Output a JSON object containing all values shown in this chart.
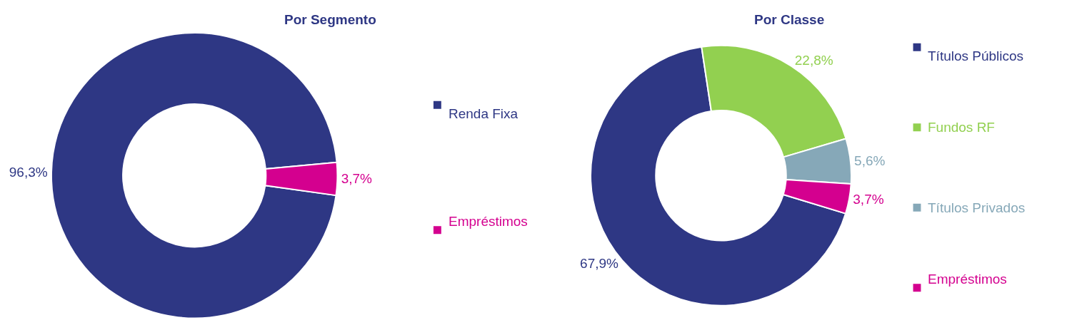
{
  "chart_data": [
    {
      "type": "donut",
      "title": "Por Segmento",
      "categories": [
        "Renda Fixa",
        "Empréstimos"
      ],
      "values": [
        96.3,
        3.7
      ],
      "colors": [
        "#2e3784",
        "#d4008f"
      ],
      "value_labels": [
        "96,3%",
        "3,7%"
      ],
      "legend": "right"
    },
    {
      "type": "donut",
      "title": "Por Classe",
      "categories": [
        "Títulos Públicos",
        "Fundos RF",
        "Títulos Privados",
        "Empréstimos"
      ],
      "values": [
        67.9,
        22.8,
        5.6,
        3.7
      ],
      "colors": [
        "#2e3784",
        "#92d050",
        "#86a8b8",
        "#d4008f"
      ],
      "value_labels": [
        "67,9%",
        "22,8%",
        "5,6%",
        "3,7%"
      ],
      "legend": "right"
    }
  ]
}
